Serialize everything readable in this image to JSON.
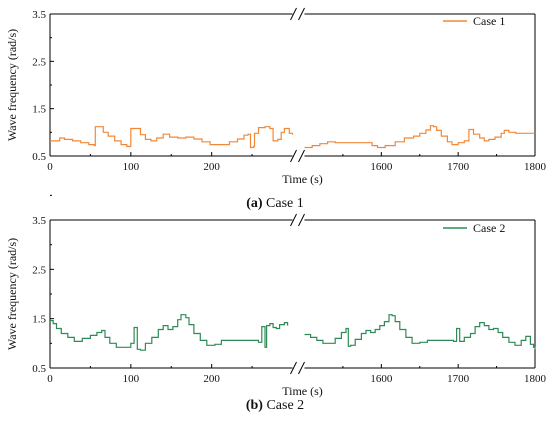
{
  "chart_data": [
    {
      "type": "line",
      "caption_letter": "(a)",
      "caption_text": " Case 1",
      "xlabel": "Time (s)",
      "ylabel": "Wave frequency (rad/s)",
      "ylim": [
        0.5,
        3.5
      ],
      "yticks": [
        "0.5",
        "1.5",
        "2.5",
        "3.5"
      ],
      "x_segments": [
        {
          "range": [
            0,
            300
          ],
          "ticks": [
            "0",
            "100",
            "200"
          ]
        },
        {
          "range": [
            1500,
            1800
          ],
          "ticks": [
            "1600",
            "1700",
            "1800"
          ]
        }
      ],
      "axis_break": true,
      "legend_position": "top-right",
      "series": [
        {
          "name": "Case 1",
          "color": "#f0883a",
          "segments": [
            [
              [
                0,
                0.82
              ],
              [
                10,
                0.82
              ],
              [
                12,
                0.88
              ],
              [
                18,
                0.85
              ],
              [
                28,
                0.82
              ],
              [
                38,
                0.78
              ],
              [
                48,
                0.74
              ],
              [
                55,
                0.72
              ],
              [
                56,
                1.12
              ],
              [
                63,
                1.12
              ],
              [
                66,
                1.0
              ],
              [
                72,
                0.92
              ],
              [
                80,
                0.82
              ],
              [
                88,
                0.74
              ],
              [
                95,
                0.7
              ],
              [
                100,
                1.08
              ],
              [
                106,
                1.08
              ],
              [
                112,
                0.95
              ],
              [
                118,
                0.85
              ],
              [
                125,
                0.82
              ],
              [
                132,
                0.88
              ],
              [
                140,
                0.96
              ],
              [
                148,
                0.9
              ],
              [
                158,
                0.88
              ],
              [
                168,
                0.9
              ],
              [
                178,
                0.86
              ],
              [
                188,
                0.8
              ],
              [
                198,
                0.74
              ],
              [
                212,
                0.74
              ],
              [
                222,
                0.8
              ],
              [
                232,
                0.86
              ],
              [
                240,
                0.94
              ],
              [
                245,
                0.96
              ],
              [
                248,
                0.68
              ],
              [
                252,
                0.7
              ],
              [
                253,
                0.98
              ],
              [
                258,
                1.1
              ],
              [
                266,
                1.12
              ],
              [
                272,
                1.08
              ],
              [
                276,
                0.82
              ],
              [
                282,
                0.85
              ],
              [
                286,
                1.0
              ],
              [
                290,
                1.08
              ],
              [
                296,
                0.98
              ],
              [
                300,
                0.95
              ]
            ],
            [
              [
                1500,
                0.68
              ],
              [
                1510,
                0.72
              ],
              [
                1520,
                0.76
              ],
              [
                1530,
                0.8
              ],
              [
                1540,
                0.78
              ],
              [
                1560,
                0.78
              ],
              [
                1578,
                0.78
              ],
              [
                1588,
                0.72
              ],
              [
                1595,
                0.68
              ],
              [
                1605,
                0.72
              ],
              [
                1618,
                0.8
              ],
              [
                1630,
                0.88
              ],
              [
                1642,
                0.92
              ],
              [
                1650,
                0.98
              ],
              [
                1658,
                1.05
              ],
              [
                1664,
                1.14
              ],
              [
                1668,
                1.12
              ],
              [
                1672,
                1.04
              ],
              [
                1678,
                0.92
              ],
              [
                1686,
                0.8
              ],
              [
                1692,
                0.74
              ],
              [
                1700,
                0.78
              ],
              [
                1708,
                0.82
              ],
              [
                1714,
                1.06
              ],
              [
                1720,
                0.96
              ],
              [
                1728,
                0.88
              ],
              [
                1734,
                0.82
              ],
              [
                1740,
                0.85
              ],
              [
                1748,
                0.9
              ],
              [
                1756,
                0.98
              ],
              [
                1760,
                1.04
              ],
              [
                1766,
                1.0
              ],
              [
                1775,
                0.98
              ],
              [
                1800,
                0.98
              ]
            ]
          ]
        }
      ]
    },
    {
      "type": "line",
      "caption_letter": "(b)",
      "caption_text": " Case 2",
      "xlabel": "Time (s)",
      "ylabel": "Wave frequency (rad/s)",
      "ylim": [
        0.5,
        3.5
      ],
      "yticks": [
        "0.5",
        "1.5",
        "2.5",
        "3.5"
      ],
      "x_segments": [
        {
          "range": [
            0,
            300
          ],
          "ticks": [
            "0",
            "100",
            "200"
          ]
        },
        {
          "range": [
            1500,
            1800
          ],
          "ticks": [
            "1600",
            "1700",
            "1800"
          ]
        }
      ],
      "axis_break": true,
      "legend_position": "top-right",
      "series": [
        {
          "name": "Case 2",
          "color": "#2e8b57",
          "segments": [
            [
              [
                0,
                1.46
              ],
              [
                4,
                1.4
              ],
              [
                8,
                1.3
              ],
              [
                14,
                1.2
              ],
              [
                22,
                1.12
              ],
              [
                30,
                1.04
              ],
              [
                40,
                1.1
              ],
              [
                50,
                1.16
              ],
              [
                58,
                1.22
              ],
              [
                64,
                1.26
              ],
              [
                68,
                1.12
              ],
              [
                74,
                1.0
              ],
              [
                82,
                0.92
              ],
              [
                95,
                0.92
              ],
              [
                100,
                1.0
              ],
              [
                104,
                1.32
              ],
              [
                108,
                0.88
              ],
              [
                112,
                0.86
              ],
              [
                118,
                1.0
              ],
              [
                126,
                1.12
              ],
              [
                134,
                1.28
              ],
              [
                140,
                1.36
              ],
              [
                146,
                1.28
              ],
              [
                152,
                1.34
              ],
              [
                158,
                1.48
              ],
              [
                162,
                1.58
              ],
              [
                168,
                1.52
              ],
              [
                172,
                1.38
              ],
              [
                178,
                1.2
              ],
              [
                186,
                1.06
              ],
              [
                194,
                0.96
              ],
              [
                204,
                0.98
              ],
              [
                212,
                1.06
              ],
              [
                230,
                1.06
              ],
              [
                244,
                1.06
              ],
              [
                252,
                1.06
              ],
              [
                258,
                1.02
              ],
              [
                262,
                1.34
              ],
              [
                266,
                0.92
              ],
              [
                268,
                1.36
              ],
              [
                272,
                1.4
              ],
              [
                276,
                1.32
              ],
              [
                280,
                1.3
              ],
              [
                284,
                1.38
              ],
              [
                290,
                1.42
              ],
              [
                294,
                1.36
              ]
            ],
            [
              [
                1500,
                1.18
              ],
              [
                1508,
                1.12
              ],
              [
                1516,
                1.06
              ],
              [
                1524,
                1.0
              ],
              [
                1534,
                1.0
              ],
              [
                1540,
                1.1
              ],
              [
                1548,
                1.22
              ],
              [
                1554,
                1.3
              ],
              [
                1557,
                0.94
              ],
              [
                1560,
                0.96
              ],
              [
                1566,
                1.08
              ],
              [
                1574,
                1.2
              ],
              [
                1580,
                1.26
              ],
              [
                1586,
                1.22
              ],
              [
                1592,
                1.28
              ],
              [
                1598,
                1.36
              ],
              [
                1604,
                1.44
              ],
              [
                1610,
                1.58
              ],
              [
                1614,
                1.56
              ],
              [
                1618,
                1.44
              ],
              [
                1624,
                1.28
              ],
              [
                1632,
                1.12
              ],
              [
                1640,
                1.0
              ],
              [
                1650,
                1.02
              ],
              [
                1660,
                1.06
              ],
              [
                1680,
                1.06
              ],
              [
                1694,
                1.04
              ],
              [
                1698,
                1.3
              ],
              [
                1702,
                1.04
              ],
              [
                1708,
                1.12
              ],
              [
                1716,
                1.2
              ],
              [
                1722,
                1.34
              ],
              [
                1728,
                1.42
              ],
              [
                1734,
                1.36
              ],
              [
                1740,
                1.28
              ],
              [
                1746,
                1.3
              ],
              [
                1752,
                1.22
              ],
              [
                1758,
                1.12
              ],
              [
                1766,
                1.02
              ],
              [
                1774,
                0.96
              ],
              [
                1782,
                1.06
              ],
              [
                1788,
                1.14
              ],
              [
                1794,
                0.98
              ],
              [
                1798,
                0.92
              ],
              [
                1800,
                0.88
              ]
            ]
          ]
        }
      ]
    }
  ]
}
